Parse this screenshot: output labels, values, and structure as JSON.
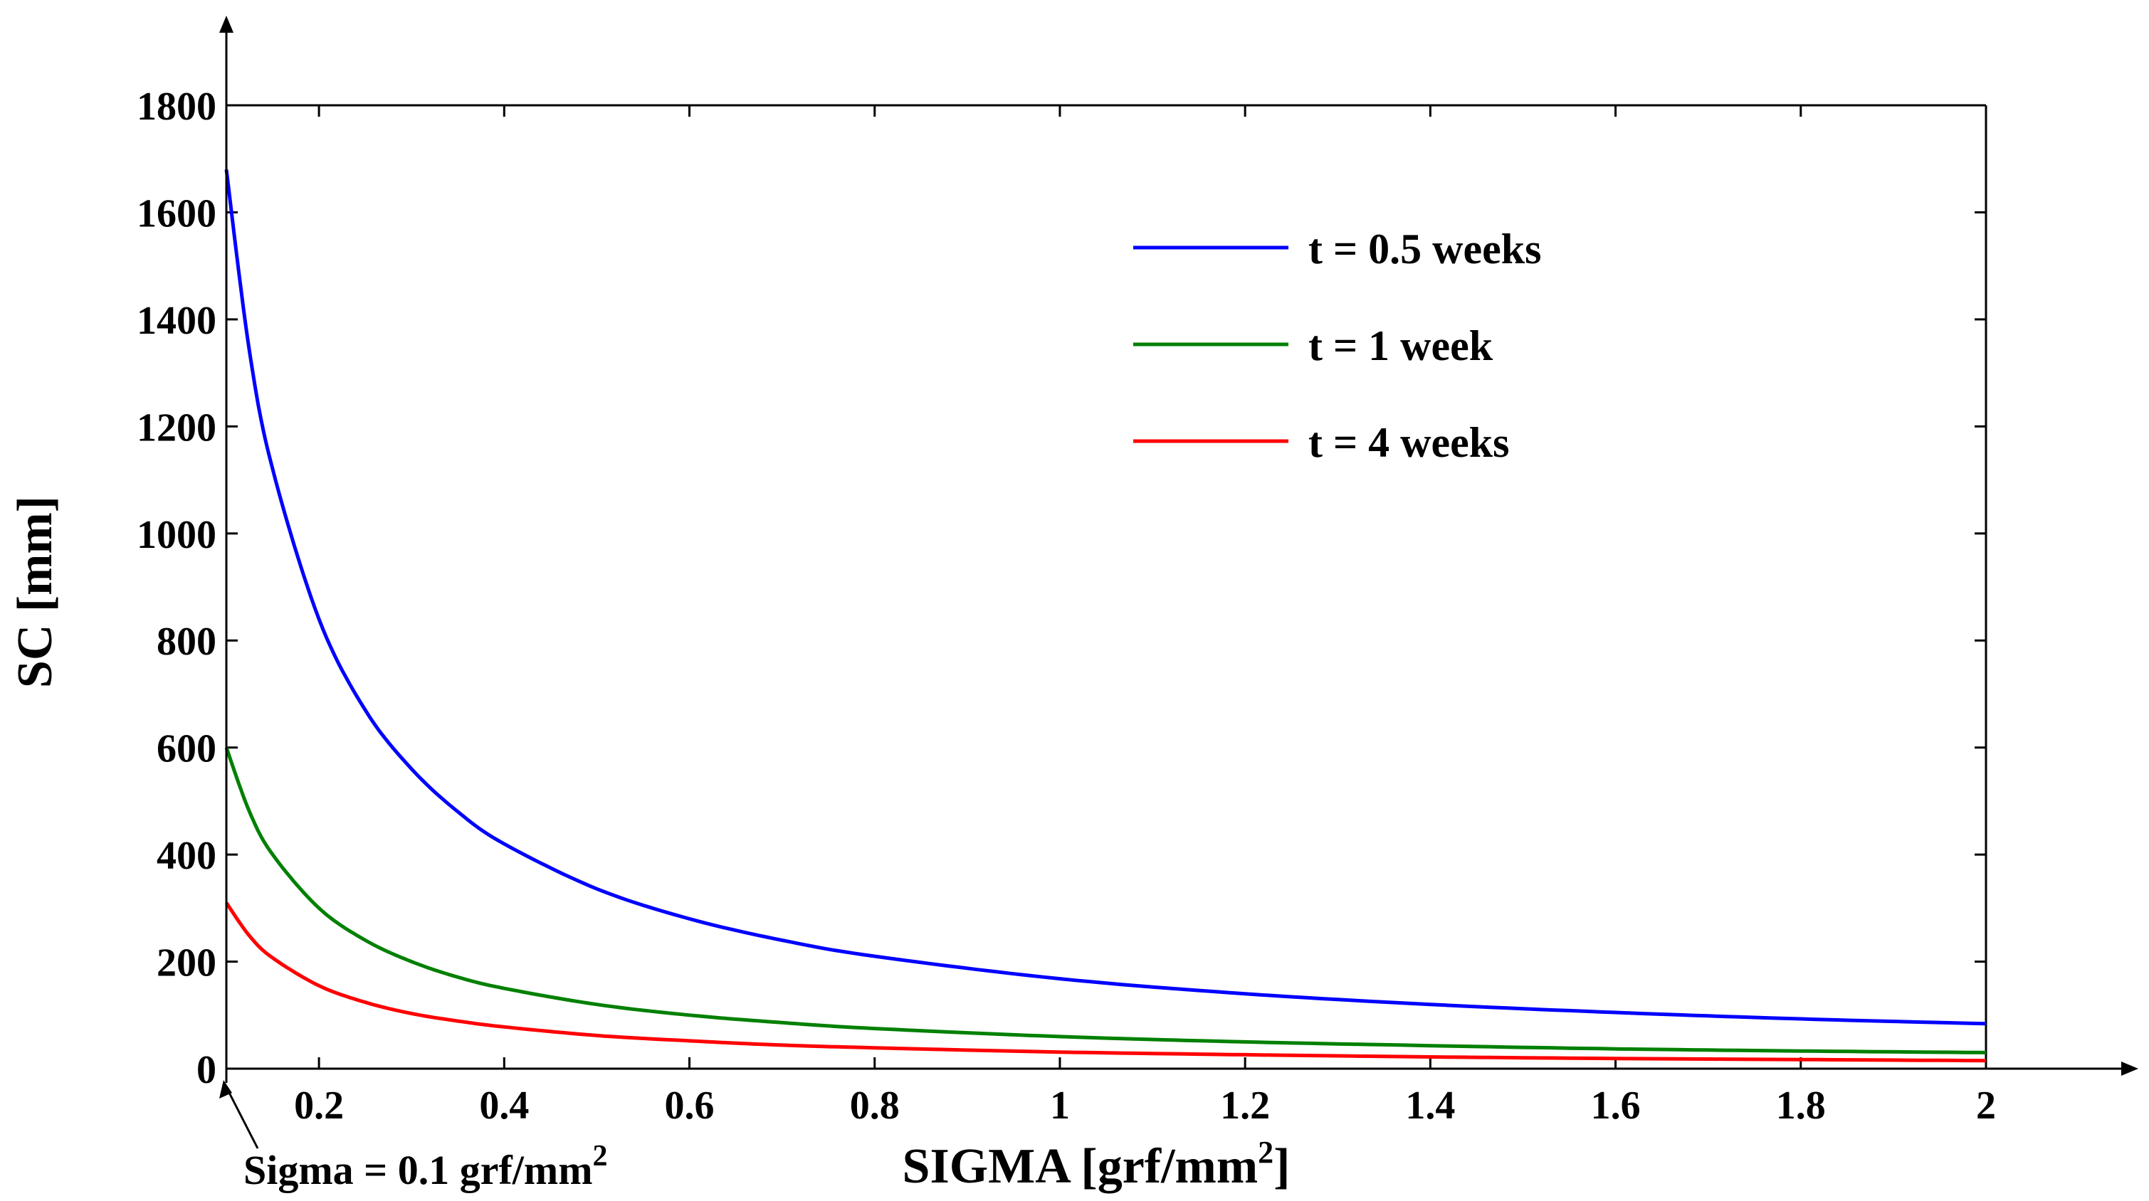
{
  "chart_data": {
    "type": "line",
    "title": "",
    "xlabel": "SIGMA [grf/mm",
    "xlabel_sup": "2",
    "xlabel_end": "]",
    "ylabel": "SC [mm]",
    "xlim": [
      0.1,
      2
    ],
    "ylim": [
      0,
      1800
    ],
    "x_ticks": [
      "0.2",
      "0.4",
      "0.6",
      "0.8",
      "1",
      "1.2",
      "1.4",
      "1.6",
      "1.8",
      "2"
    ],
    "y_ticks": [
      "0",
      "200",
      "400",
      "600",
      "800",
      "1000",
      "1200",
      "1400",
      "1600",
      "1800"
    ],
    "grid": false,
    "legend_position": "top-right",
    "annotation": {
      "text": "Sigma = 0.1 grf/mm",
      "sup": "2",
      "x": 0.1,
      "y": 0
    },
    "series": [
      {
        "name": "t = 0.5 weeks",
        "color": "#0000ff",
        "x": [
          0.1,
          0.125,
          0.15,
          0.2,
          0.25,
          0.3,
          0.35,
          0.4,
          0.5,
          0.6,
          0.7,
          0.8,
          1.0,
          1.2,
          1.4,
          1.6,
          1.8,
          2.0
        ],
        "y": [
          1680,
          1340,
          1120,
          840,
          670,
          560,
          480,
          420,
          336,
          280,
          240,
          210,
          168,
          140,
          120,
          105,
          93,
          84
        ]
      },
      {
        "name": "t = 1 week",
        "color": "#008000",
        "x": [
          0.1,
          0.125,
          0.15,
          0.2,
          0.25,
          0.3,
          0.35,
          0.4,
          0.5,
          0.6,
          0.7,
          0.8,
          1.0,
          1.2,
          1.4,
          1.6,
          1.8,
          2.0
        ],
        "y": [
          600,
          480,
          400,
          300,
          240,
          200,
          171,
          150,
          120,
          100,
          86,
          75,
          60,
          50,
          43,
          37,
          33,
          30
        ]
      },
      {
        "name": "t = 4 weeks",
        "color": "#ff0000",
        "x": [
          0.1,
          0.125,
          0.15,
          0.2,
          0.25,
          0.3,
          0.35,
          0.4,
          0.5,
          0.6,
          0.7,
          0.8,
          1.0,
          1.2,
          1.4,
          1.6,
          1.8,
          2.0
        ],
        "y": [
          310,
          248,
          207,
          155,
          124,
          103,
          89,
          78,
          62,
          52,
          44,
          39,
          31,
          26,
          22,
          19,
          17,
          15
        ]
      }
    ]
  }
}
